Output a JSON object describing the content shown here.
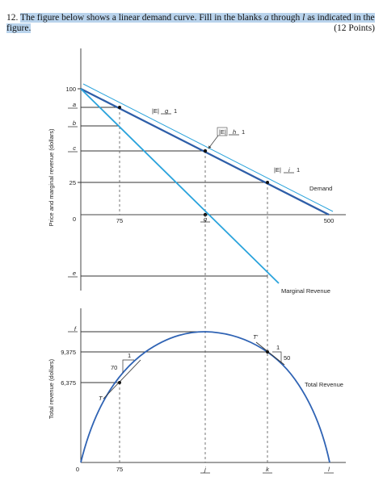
{
  "question": {
    "number": "12.",
    "text_line1": "The figure below shows a linear demand curve. Fill in the blanks",
    "var_a": "a",
    "through": "through",
    "var_l": "l",
    "text_line1_end": "as indicated in the",
    "text_line2": "figure.",
    "points": "(12 Points)"
  },
  "top_chart": {
    "ylabel": "Price and marginal revenue (dollars)",
    "y_ticks": {
      "t100": "100",
      "ta": "a",
      "tb": "b",
      "tc": "c",
      "t25": "25",
      "t0": "0",
      "te": "e"
    },
    "x_ticks": {
      "t75": "75",
      "tg": "g",
      "t500": "500"
    },
    "demand_label": "Demand",
    "mr_label": "Marginal Revenue",
    "slope_boxes": {
      "box1": {
        "prefix": "|E|",
        "blank": "g",
        "suffix": "1"
      },
      "box2": {
        "prefix": "|E|",
        "blank": "h",
        "suffix": "1"
      },
      "box3": {
        "prefix": "|E|",
        "blank": "i",
        "suffix": "1"
      }
    }
  },
  "bottom_chart": {
    "ylabel": "Total revenue (dollars)",
    "y_ticks": {
      "tf": "f",
      "t9375": "9,375",
      "t6375": "6,375"
    },
    "x_ticks": {
      "t0": "0",
      "t75": "75",
      "tj": "j",
      "tk": "k",
      "tl": "l"
    },
    "tr_label": "Total Revenue",
    "tangent_T": "T",
    "tangent_Tp": "T'",
    "rise_70": "70",
    "run_1a": "1",
    "run_1b": "1",
    "rise_50": "50"
  },
  "colors": {
    "demand": "#2e5ea8",
    "mr": "#2aa3dc",
    "tr": "#2f63b4",
    "highlight": "#b9d3ec"
  }
}
